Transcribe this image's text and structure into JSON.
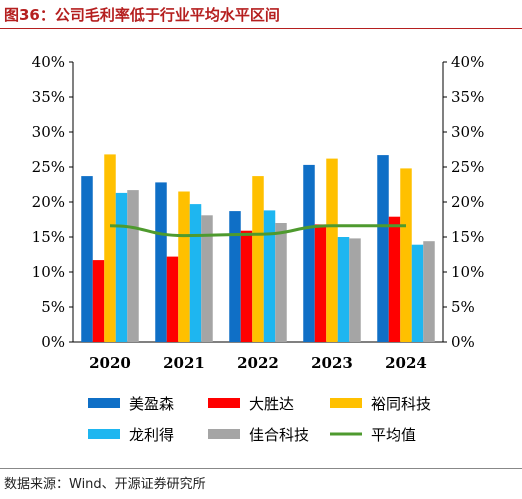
{
  "title": "图36：公司毛利率低于行业平均水平区间",
  "source": "数据来源：Wind、开源证券研究所",
  "chart_data": {
    "type": "bar",
    "categories": [
      "2020",
      "2021",
      "2022",
      "2023",
      "2024"
    ],
    "series": [
      {
        "name": "美盈森",
        "type": "bar",
        "color": "#0F6FC6",
        "values": [
          23.7,
          22.8,
          18.7,
          25.3,
          26.7
        ]
      },
      {
        "name": "大胜达",
        "type": "bar",
        "color": "#FF0000",
        "values": [
          11.7,
          12.2,
          15.9,
          16.8,
          17.9
        ]
      },
      {
        "name": "裕同科技",
        "type": "bar",
        "color": "#FFC000",
        "values": [
          26.8,
          21.5,
          23.7,
          26.2,
          24.8
        ]
      },
      {
        "name": "龙利得",
        "type": "bar",
        "color": "#1EB6F0",
        "values": [
          21.3,
          19.7,
          18.8,
          15.0,
          13.9
        ]
      },
      {
        "name": "佳合科技",
        "type": "bar",
        "color": "#A5A5A5",
        "values": [
          21.7,
          18.1,
          17.0,
          14.8,
          14.4
        ]
      },
      {
        "name": "平均值",
        "type": "line",
        "color": "#4E9A2E",
        "values": [
          16.6,
          15.2,
          15.4,
          16.6,
          16.6
        ]
      }
    ],
    "ylim": [
      0,
      40
    ],
    "yticks": [
      "0%",
      "5%",
      "10%",
      "15%",
      "20%",
      "25%",
      "30%",
      "35%",
      "40%"
    ],
    "secondary_yticks": [
      "0%",
      "5%",
      "10%",
      "15%",
      "20%",
      "25%",
      "30%",
      "35%",
      "40%"
    ],
    "legend_position": "bottom",
    "grid": false
  }
}
